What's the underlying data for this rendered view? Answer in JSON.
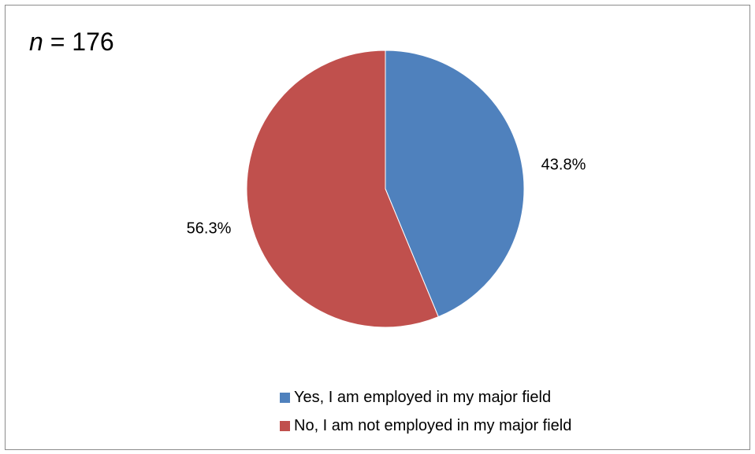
{
  "chart_data": {
    "type": "pie",
    "annotation": {
      "variable": "n",
      "text": " = 176"
    },
    "slices": [
      {
        "label": "Yes, I am employed in my major field",
        "value": 43.8,
        "value_label": "43.8%",
        "color": "#4f81bd"
      },
      {
        "label": "No, I am not employed in my major field",
        "value": 56.3,
        "value_label": "56.3%",
        "color": "#c0504d"
      }
    ],
    "legend_position": "bottom"
  }
}
